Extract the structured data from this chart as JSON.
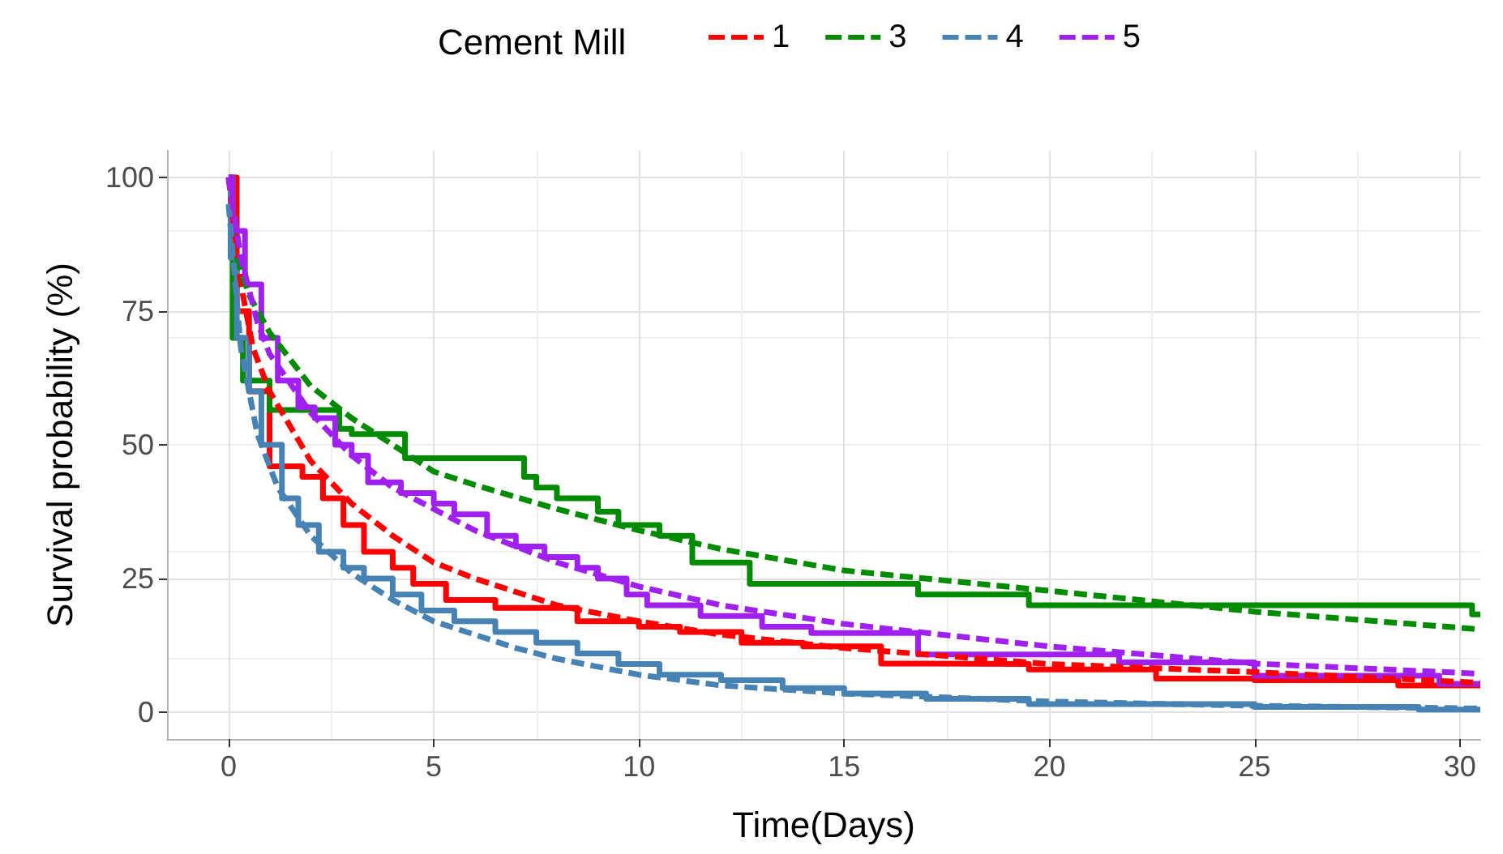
{
  "chart_data": {
    "type": "line",
    "xlabel": "Time(Days)",
    "ylabel": "Survival probability (%)",
    "legend_title": "Cement Mill",
    "legend": "top",
    "grid": true,
    "xlim": [
      -1.5,
      30.5
    ],
    "xticks": [
      0,
      5,
      10,
      15,
      20,
      25,
      30
    ],
    "ylim": [
      -5,
      105
    ],
    "yticks": [
      0,
      25,
      50,
      75,
      100
    ],
    "series": [
      {
        "type": "step",
        "color": "#ff0000",
        "line_style": "solid",
        "x": [
          0,
          0.2,
          0.5,
          1.0,
          1.8,
          2.3,
          2.8,
          3.3,
          4,
          4.5,
          5.3,
          6.5,
          8.5,
          10,
          11,
          12.5,
          14,
          15.9,
          17,
          19.5,
          22.6,
          25,
          28.5,
          30.5
        ],
        "values": [
          100,
          75,
          60,
          46,
          44,
          40,
          35,
          30,
          27,
          24,
          21,
          19.5,
          17,
          16,
          15,
          13,
          12.3,
          9.1,
          9,
          8,
          6.3,
          6,
          5,
          4.8
        ]
      },
      {
        "type": "step",
        "color": "#008b00",
        "line_style": "solid",
        "x": [
          0,
          0.1,
          0.35,
          1.0,
          2.7,
          3,
          4.3,
          7.2,
          7.5,
          8,
          9,
          9.5,
          10.5,
          11.3,
          12.7,
          16.8,
          19.5,
          30.3,
          30.5
        ],
        "values": [
          100,
          70,
          62,
          56.5,
          53,
          52,
          47.5,
          44,
          42,
          40,
          37.5,
          35,
          33,
          28,
          24,
          22,
          20,
          18.3,
          18.3
        ]
      },
      {
        "type": "step",
        "color": "#4682b4",
        "line_style": "solid",
        "x": [
          0,
          0.05,
          0.2,
          0.5,
          0.8,
          1.3,
          1.7,
          2.2,
          2.8,
          3.3,
          4,
          4.7,
          5.5,
          6.5,
          7.5,
          8.5,
          9.5,
          10.5,
          12,
          13.5,
          15,
          17,
          19.5,
          25,
          29,
          30.5
        ],
        "values": [
          100,
          85,
          70,
          60,
          50,
          40,
          35,
          30,
          27,
          25,
          22,
          19,
          17,
          15,
          13,
          11,
          9,
          7,
          6,
          4.5,
          3.5,
          2.5,
          1.5,
          1,
          0.5,
          0.3
        ]
      },
      {
        "type": "step",
        "color": "#a020f0",
        "line_style": "solid",
        "x": [
          0,
          0.1,
          0.4,
          0.8,
          1.2,
          1.7,
          2.1,
          2.6,
          3.0,
          3.4,
          4.2,
          5,
          5.5,
          6.3,
          7,
          7.7,
          8.5,
          9,
          9.7,
          10.2,
          11.5,
          13,
          14.2,
          16.8,
          21.7,
          25,
          29.5,
          30.5
        ],
        "values": [
          100,
          90,
          80,
          70,
          62,
          57,
          55,
          50,
          48,
          43,
          41,
          39,
          37,
          33,
          31,
          29,
          27,
          25,
          22,
          20,
          18,
          16,
          14.8,
          10.8,
          9.3,
          6.8,
          5.3,
          5.3
        ]
      },
      {
        "type": "line",
        "name": "1",
        "color": "#ff0000",
        "line_style": "dashed",
        "x": [
          0,
          0.3,
          0.6,
          1,
          2,
          3,
          4,
          5,
          6,
          8,
          10,
          12,
          15,
          20,
          25,
          30.5
        ],
        "values": [
          100,
          80,
          68,
          60,
          47,
          39,
          33,
          28,
          25,
          20,
          17,
          14.5,
          12,
          9,
          7.5,
          5.5
        ]
      },
      {
        "type": "line",
        "name": "3",
        "color": "#008b00",
        "line_style": "dashed",
        "x": [
          0.2,
          0.5,
          1,
          2,
          3,
          4,
          5,
          6,
          8,
          10,
          12,
          15,
          20,
          25,
          30.5
        ],
        "values": [
          85,
          78,
          71,
          61,
          55,
          50,
          45,
          42.5,
          38,
          34,
          30.5,
          26.5,
          22.7,
          18.8,
          15.5
        ]
      },
      {
        "type": "line",
        "name": "4",
        "color": "#4682b4",
        "line_style": "dashed",
        "x": [
          0,
          0.3,
          0.7,
          1.2,
          2,
          3,
          4,
          5,
          6,
          7,
          8,
          10,
          12,
          15,
          20,
          25,
          30.5
        ],
        "values": [
          95,
          68,
          52,
          42,
          33,
          26,
          21,
          17,
          14.5,
          12,
          10,
          7,
          5,
          3.5,
          2,
          1.2,
          0.7
        ]
      },
      {
        "type": "line",
        "name": "5",
        "color": "#a020f0",
        "line_style": "dashed",
        "x": [
          0,
          0.3,
          0.7,
          1,
          2,
          3,
          4,
          5,
          6,
          8,
          10,
          12,
          15,
          20,
          25,
          30.5
        ],
        "values": [
          100,
          85,
          73,
          67,
          56,
          48,
          42,
          38,
          34,
          28,
          23.5,
          20,
          16.5,
          12.3,
          9.1,
          7.2
        ]
      }
    ]
  }
}
